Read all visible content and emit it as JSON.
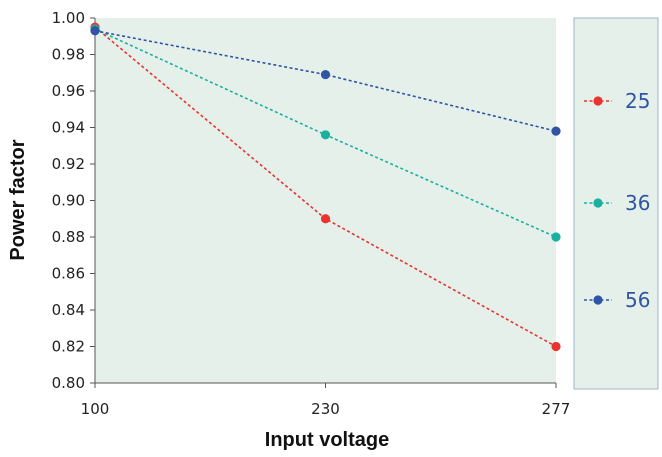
{
  "chart_data": {
    "type": "line",
    "title": "",
    "xlabel": "Input voltage",
    "ylabel": "Power factor",
    "categories": [
      "100",
      "230",
      "277"
    ],
    "ylim": [
      0.8,
      1.0
    ],
    "yticks": [
      "0.80",
      "0.82",
      "0.84",
      "0.86",
      "0.88",
      "0.90",
      "0.92",
      "0.94",
      "0.96",
      "0.98",
      "1.00"
    ],
    "grid": false,
    "legend_position": "right",
    "plot_background": "#e6f0ea",
    "series": [
      {
        "name": "25",
        "values": [
          0.995,
          0.89,
          0.82
        ],
        "color": "#e8332f"
      },
      {
        "name": "36",
        "values": [
          0.994,
          0.936,
          0.88
        ],
        "color": "#1ab0a0"
      },
      {
        "name": "56",
        "values": [
          0.993,
          0.969,
          0.938
        ],
        "color": "#2f55a4"
      }
    ]
  }
}
